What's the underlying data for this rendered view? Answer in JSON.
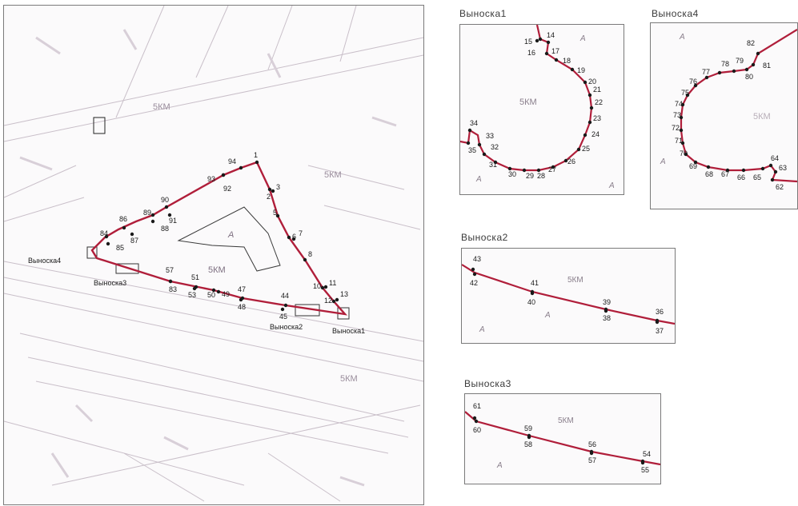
{
  "colors": {
    "boundary": "#b01e3a",
    "point": "#1a1a1a",
    "label": "#1a1a1a",
    "background_text": "#9a8d9c",
    "frame": "#7a7a7a"
  },
  "main_map": {
    "zone_labels": [
      "5КМ",
      "A",
      "5КМ",
      "5КМ",
      "5КМ"
    ],
    "callout_labels": [
      "Выноска4",
      "Выноска3",
      "Выноска2",
      "Выноска1"
    ],
    "points": [
      "1",
      "2",
      "3",
      "5",
      "6",
      "7",
      "8",
      "10",
      "11",
      "12",
      "13",
      "44",
      "45",
      "47",
      "48",
      "49",
      "50",
      "51",
      "53",
      "57",
      "83",
      "84",
      "85",
      "86",
      "87",
      "88",
      "89",
      "90",
      "91",
      "92",
      "93",
      "94"
    ]
  },
  "callout1": {
    "title": "Выноска1",
    "zone": "5КМ",
    "letters": [
      "A",
      "A",
      "A"
    ],
    "points": [
      "14",
      "15",
      "16",
      "17",
      "18",
      "19",
      "20",
      "21",
      "22",
      "23",
      "24",
      "25",
      "26",
      "27",
      "28",
      "29",
      "30",
      "31",
      "32",
      "33",
      "34",
      "35"
    ]
  },
  "callout4": {
    "title": "Выноска4",
    "zone": "5КМ",
    "letters": [
      "A",
      "A"
    ],
    "points": [
      "82",
      "81",
      "80",
      "79",
      "78",
      "77",
      "76",
      "75",
      "74",
      "73",
      "72",
      "71",
      "70",
      "69",
      "68",
      "67",
      "66",
      "65",
      "64",
      "63",
      "62"
    ]
  },
  "callout2": {
    "title": "Выноска2",
    "zone": "5КМ",
    "letters": [
      "A",
      "A"
    ],
    "points": [
      "43",
      "42",
      "41",
      "40",
      "39",
      "38",
      "36",
      "37"
    ]
  },
  "callout3": {
    "title": "Выноска3",
    "zone": "5КМ",
    "letters": [
      "A"
    ],
    "points": [
      "61",
      "60",
      "59",
      "58",
      "56",
      "57",
      "54",
      "55"
    ]
  }
}
